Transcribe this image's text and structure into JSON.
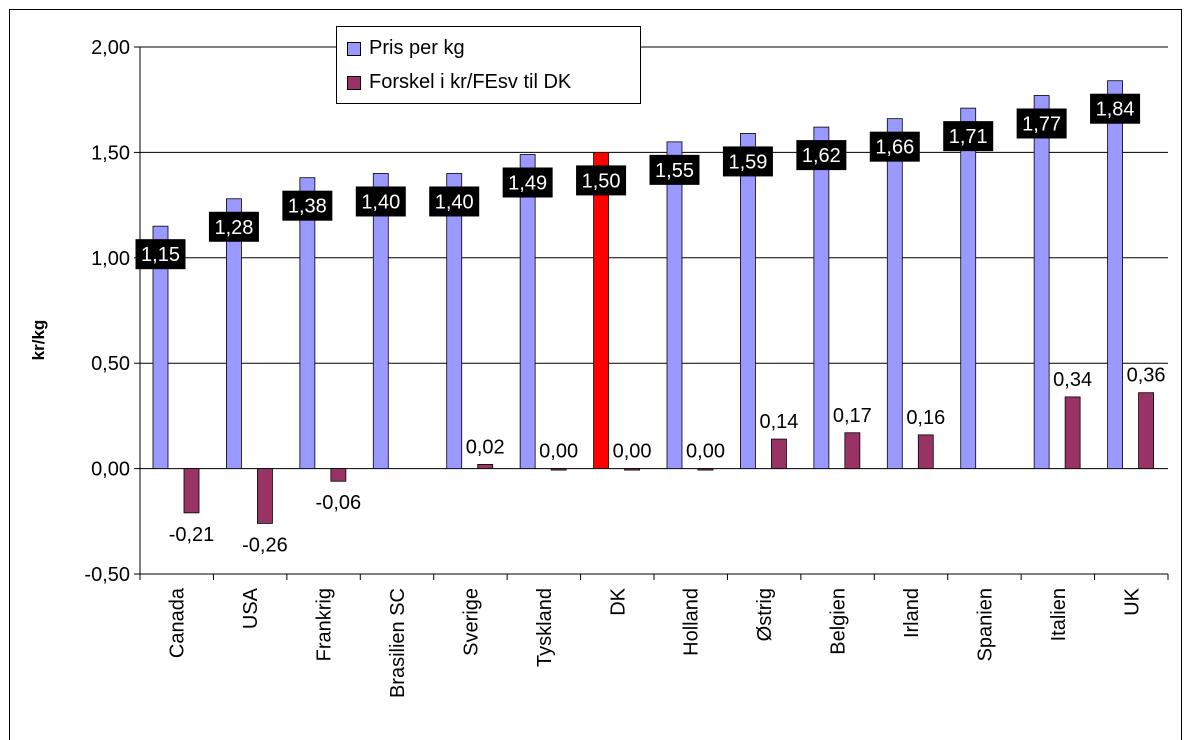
{
  "chart_data": {
    "type": "bar",
    "title": "",
    "xlabel": "",
    "ylabel": "kr/kg",
    "ylim": [
      -0.5,
      2.0
    ],
    "yticks": [
      "2,00",
      "1,50",
      "1,00",
      "0,50",
      "0,00",
      "-0,50"
    ],
    "ytick_values": [
      2.0,
      1.5,
      1.0,
      0.5,
      0.0,
      -0.5
    ],
    "grid": true,
    "legend_position": "top",
    "categories": [
      "Canada",
      "USA",
      "Frankrig",
      "Brasilien SC",
      "Sverige",
      "Tyskland",
      "DK",
      "Holland",
      "Østrig",
      "Belgien",
      "Irland",
      "Spanien",
      "Italien",
      "UK"
    ],
    "series": [
      {
        "name": "Pris per kg",
        "color": "#9999ff",
        "highlight": {
          "category": "DK",
          "color": "#ff0000"
        },
        "values": [
          1.15,
          1.28,
          1.38,
          1.4,
          1.4,
          1.49,
          1.5,
          1.55,
          1.59,
          1.62,
          1.66,
          1.71,
          1.77,
          1.84
        ],
        "labels": [
          "1,15",
          "1,28",
          "1,38",
          "1,40",
          "1,40",
          "1,49",
          "1,50",
          "1,55",
          "1,59",
          "1,62",
          "1,66",
          "1,71",
          "1,77",
          "1,84"
        ]
      },
      {
        "name": "Forskel i kr/FEsv til DK",
        "color": "#993366",
        "values": [
          -0.21,
          -0.26,
          -0.06,
          null,
          0.02,
          0.0,
          0.0,
          0.0,
          0.14,
          0.17,
          0.16,
          null,
          0.34,
          0.36
        ],
        "labels": [
          "-0,21",
          "-0,26",
          "-0,06",
          "",
          "0,02",
          "0,00",
          "0,00",
          "0,00",
          "0,14",
          "0,17",
          "0,16",
          "",
          "0,34",
          "0,36"
        ]
      }
    ]
  }
}
